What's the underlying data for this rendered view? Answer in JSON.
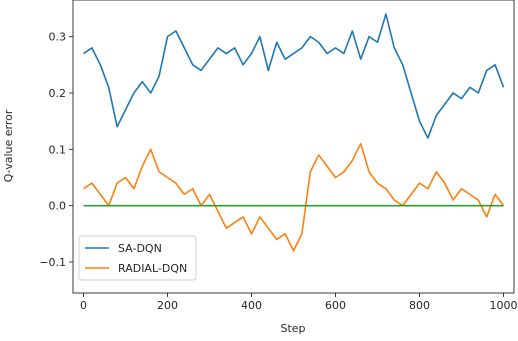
{
  "chart_data": {
    "type": "line",
    "xlabel": "Step",
    "ylabel": "Q-value error",
    "xlim": [
      -25,
      1025
    ],
    "ylim": [
      -0.155,
      0.365
    ],
    "xticks": [
      0,
      200,
      400,
      600,
      800,
      1000
    ],
    "xtick_labels": [
      "0",
      "200",
      "400",
      "600",
      "800",
      "1000"
    ],
    "yticks": [
      -0.1,
      0.0,
      0.1,
      0.2,
      0.3
    ],
    "ytick_labels": [
      "−0.1",
      "0.0",
      "0.1",
      "0.2",
      "0.3"
    ],
    "grid": false,
    "legend_position": "lower-left",
    "x": [
      0,
      20,
      40,
      60,
      80,
      100,
      120,
      140,
      160,
      180,
      200,
      220,
      240,
      260,
      280,
      300,
      320,
      340,
      360,
      380,
      400,
      420,
      440,
      460,
      480,
      500,
      520,
      540,
      560,
      580,
      600,
      620,
      640,
      660,
      680,
      700,
      720,
      740,
      760,
      780,
      800,
      820,
      840,
      860,
      880,
      900,
      920,
      940,
      960,
      980,
      1000
    ],
    "series": [
      {
        "name": "SA-DQN",
        "color": "#1f77b4",
        "values": [
          0.27,
          0.28,
          0.25,
          0.21,
          0.14,
          0.17,
          0.2,
          0.22,
          0.2,
          0.23,
          0.3,
          0.31,
          0.28,
          0.25,
          0.24,
          0.26,
          0.28,
          0.27,
          0.28,
          0.25,
          0.27,
          0.3,
          0.24,
          0.29,
          0.26,
          0.27,
          0.28,
          0.3,
          0.29,
          0.27,
          0.28,
          0.27,
          0.31,
          0.26,
          0.3,
          0.29,
          0.34,
          0.28,
          0.25,
          0.2,
          0.15,
          0.12,
          0.16,
          0.18,
          0.2,
          0.19,
          0.21,
          0.2,
          0.24,
          0.25,
          0.21
        ]
      },
      {
        "name": "RADIAL-DQN",
        "color": "#ff7f0e",
        "values": [
          0.03,
          0.04,
          0.02,
          0.0,
          0.04,
          0.05,
          0.03,
          0.07,
          0.1,
          0.06,
          0.05,
          0.04,
          0.02,
          0.03,
          0.0,
          0.02,
          -0.01,
          -0.04,
          -0.03,
          -0.02,
          -0.05,
          -0.02,
          -0.04,
          -0.06,
          -0.05,
          -0.08,
          -0.05,
          0.06,
          0.09,
          0.07,
          0.05,
          0.06,
          0.08,
          0.11,
          0.06,
          0.04,
          0.03,
          0.01,
          0.0,
          0.02,
          0.04,
          0.03,
          0.06,
          0.04,
          0.01,
          0.03,
          0.02,
          0.01,
          -0.02,
          0.02,
          0.0
        ]
      },
      {
        "name": "",
        "color": "#2ca02c",
        "values": [
          0.0,
          0.0,
          0.0,
          0.0,
          0.0,
          0.0,
          0.0,
          0.0,
          0.0,
          0.0,
          0.0,
          0.0,
          0.0,
          0.0,
          0.0,
          0.0,
          0.0,
          0.0,
          0.0,
          0.0,
          0.0,
          0.0,
          0.0,
          0.0,
          0.0,
          0.0,
          0.0,
          0.0,
          0.0,
          0.0,
          0.0,
          0.0,
          0.0,
          0.0,
          0.0,
          0.0,
          0.0,
          0.0,
          0.0,
          0.0,
          0.0,
          0.0,
          0.0,
          0.0,
          0.0,
          0.0,
          0.0,
          0.0,
          0.0,
          0.0,
          0.0
        ]
      }
    ],
    "legend": [
      {
        "label": "SA-DQN",
        "color": "#1f77b4"
      },
      {
        "label": "RADIAL-DQN",
        "color": "#ff7f0e"
      }
    ]
  }
}
